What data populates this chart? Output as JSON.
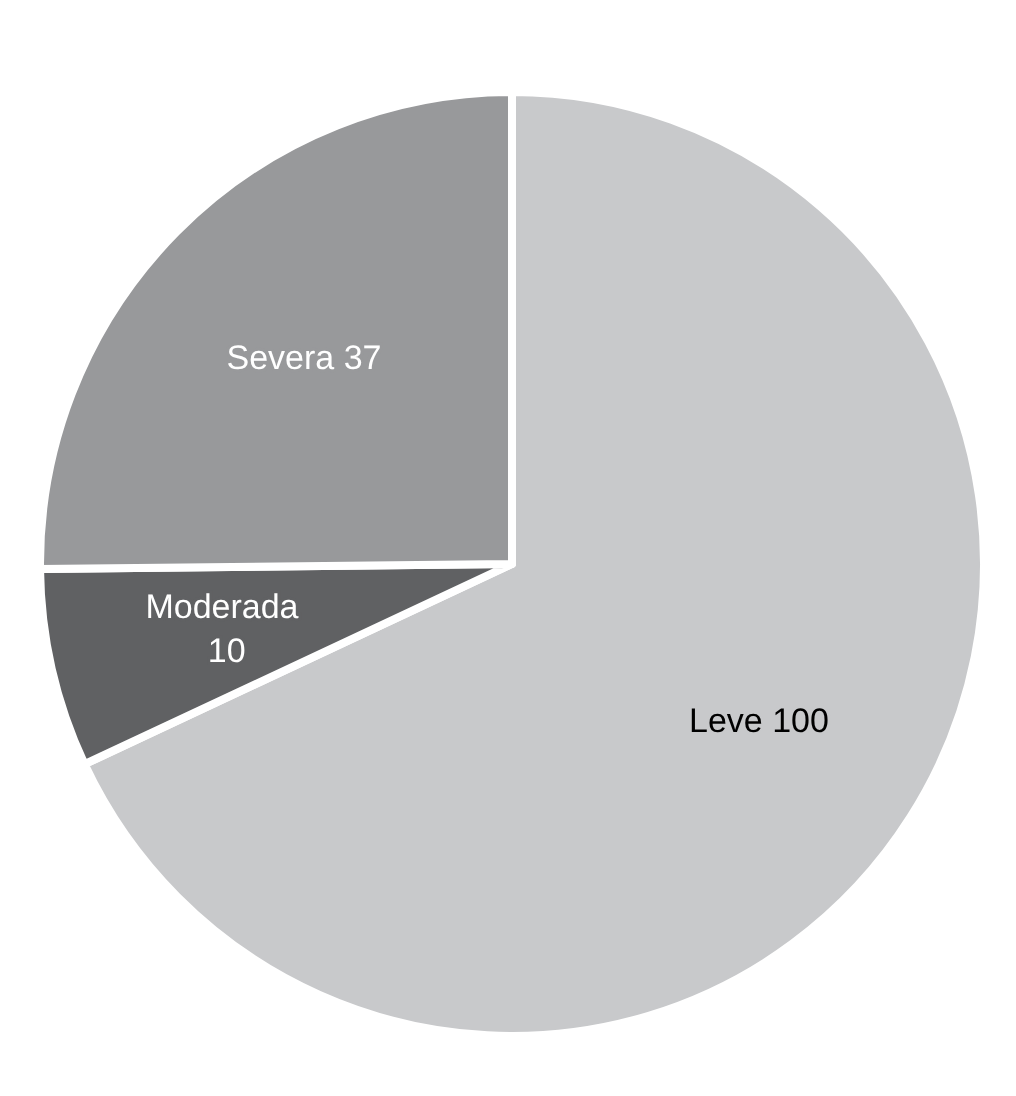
{
  "chart_data": {
    "type": "pie",
    "categories": [
      "Leve",
      "Moderada",
      "Severa"
    ],
    "values": [
      100,
      10,
      37
    ],
    "colors": [
      "#c8c9cb",
      "#606163",
      "#98999b"
    ],
    "data_labels": true,
    "legend": false
  }
}
